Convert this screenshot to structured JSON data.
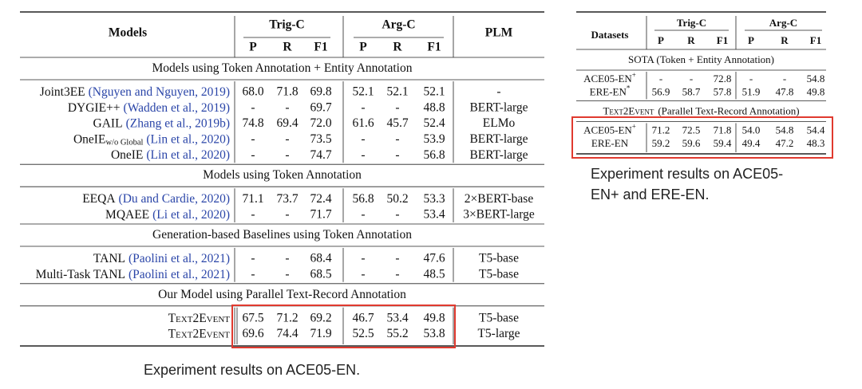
{
  "left_table": {
    "header": {
      "models": "Models",
      "groups": [
        "Trig-C",
        "Arg-C"
      ],
      "columns": [
        "P",
        "R",
        "F1",
        "P",
        "R",
        "F1"
      ],
      "plm": "PLM"
    },
    "sections": [
      {
        "title": "Models using Token Annotation + Entity Annotation",
        "rows": [
          {
            "model": "Joint3EE",
            "cite": "(Nguyen and Nguyen, 2019)",
            "values": [
              "68.0",
              "71.8",
              "69.8",
              "52.1",
              "52.1",
              "52.1"
            ],
            "plm": "-"
          },
          {
            "model": "DYGIE++",
            "cite": "(Wadden et al., 2019)",
            "values": [
              "-",
              "-",
              "69.7",
              "-",
              "-",
              "48.8"
            ],
            "plm": "BERT-large"
          },
          {
            "model": "GAIL",
            "cite": "(Zhang et al., 2019b)",
            "values": [
              "74.8",
              "69.4",
              "72.0",
              "61.6",
              "45.7",
              "52.4"
            ],
            "plm": "ELMo"
          },
          {
            "model": "OneIE",
            "model_sub": "w/o Global",
            "cite": "(Lin et al., 2020)",
            "values": [
              "-",
              "-",
              "73.5",
              "-",
              "-",
              "53.9"
            ],
            "plm": "BERT-large"
          },
          {
            "model": "OneIE",
            "cite": "(Lin et al., 2020)",
            "values": [
              "-",
              "-",
              "74.7",
              "-",
              "-",
              "56.8"
            ],
            "plm": "BERT-large"
          }
        ]
      },
      {
        "title": "Models using Token Annotation",
        "rows": [
          {
            "model": "EEQA",
            "cite": "(Du and Cardie, 2020)",
            "values": [
              "71.1",
              "73.7",
              "72.4",
              "56.8",
              "50.2",
              "53.3"
            ],
            "plm": "2×BERT-base"
          },
          {
            "model": "MQAEE",
            "cite": "(Li et al., 2020)",
            "values": [
              "-",
              "-",
              "71.7",
              "-",
              "-",
              "53.4"
            ],
            "plm": "3×BERT-large"
          }
        ]
      },
      {
        "title": "Generation-based Baselines using Token Annotation",
        "rows": [
          {
            "model": "TANL",
            "cite": "(Paolini et al., 2021)",
            "values": [
              "-",
              "-",
              "68.4",
              "-",
              "-",
              "47.6"
            ],
            "plm": "T5-base"
          },
          {
            "model": "Multi-Task TANL",
            "cite": "(Paolini et al., 2021)",
            "values": [
              "-",
              "-",
              "68.5",
              "-",
              "-",
              "48.5"
            ],
            "plm": "T5-base"
          }
        ]
      },
      {
        "title": "Our Model using Parallel Text-Record Annotation",
        "rows": [
          {
            "model_sc": "Text2Event",
            "values": [
              "67.5",
              "71.2",
              "69.2",
              "46.7",
              "53.4",
              "49.8"
            ],
            "plm": "T5-base"
          },
          {
            "model_sc": "Text2Event",
            "values": [
              "69.6",
              "74.4",
              "71.9",
              "52.5",
              "55.2",
              "53.8"
            ],
            "plm": "T5-large"
          }
        ]
      }
    ],
    "caption": "Experiment results on ACE05-EN."
  },
  "right_table": {
    "header": {
      "datasets": "Datasets",
      "groups": [
        "Trig-C",
        "Arg-C"
      ],
      "columns": [
        "P",
        "R",
        "F1",
        "P",
        "R",
        "F1"
      ]
    },
    "sections": [
      {
        "title": "SOTA (Token + Entity Annotation)",
        "rows": [
          {
            "dataset": "ACE05-EN",
            "sup": "+",
            "values": [
              "-",
              "-",
              "72.8",
              "-",
              "-",
              "54.8"
            ]
          },
          {
            "dataset": "ERE-EN",
            "sup": "*",
            "values": [
              "56.9",
              "58.7",
              "57.8",
              "51.9",
              "47.8",
              "49.8"
            ]
          }
        ]
      },
      {
        "title_sc": "Text2Event",
        "title": "(Parallel Text-Record Annotation)",
        "rows": [
          {
            "dataset": "ACE05-EN",
            "sup": "+",
            "values": [
              "71.2",
              "72.5",
              "71.8",
              "54.0",
              "54.8",
              "54.4"
            ]
          },
          {
            "dataset": "ERE-EN",
            "values": [
              "59.2",
              "59.6",
              "59.4",
              "49.4",
              "47.2",
              "48.3"
            ]
          }
        ]
      }
    ],
    "caption": "Experiment results on ACE05-EN+ and ERE-EN."
  }
}
